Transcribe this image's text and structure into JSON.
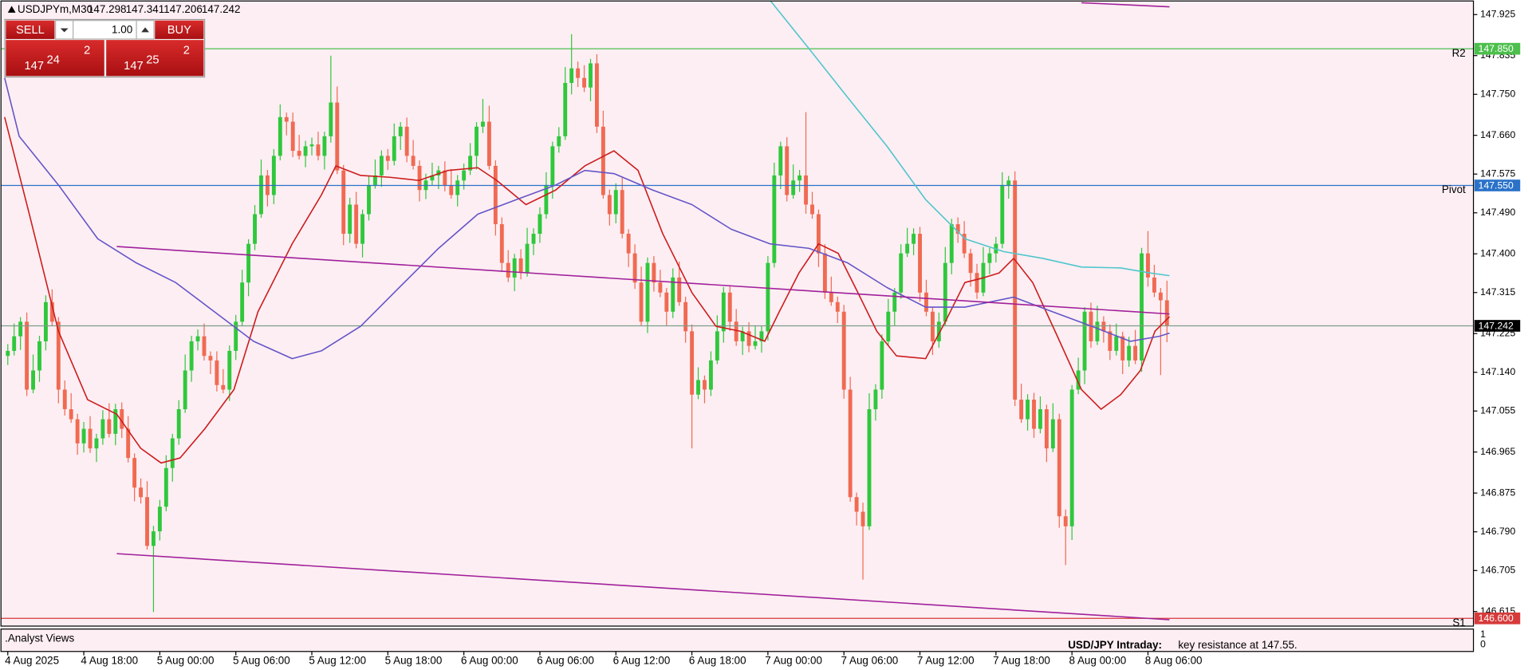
{
  "header": {
    "symbol": "USDJPYm,M30",
    "ohlc": [
      147.298,
      147.341,
      147.206,
      147.242
    ]
  },
  "trade_panel": {
    "sell": "SELL",
    "buy": "BUY",
    "lot": "1.00",
    "sell_price": {
      "big_figure": "147",
      "pips": "24",
      "fraction": "2"
    },
    "buy_price": {
      "big_figure": "147",
      "pips": "25",
      "fraction": "2"
    }
  },
  "indicator_window": {
    "title": ".Analyst Views",
    "ticks": [
      "1",
      "0"
    ],
    "annotation": {
      "title": "USD/JPY Intraday:",
      "text": "key resistance at 147.55."
    }
  },
  "chart_data": {
    "type": "candlestick",
    "up_color": "#2fc83c",
    "down_color": "#f06a52",
    "open": [
      147.176,
      147.187,
      147.219,
      147.251,
      147.102,
      147.144,
      147.208,
      147.294,
      147.251,
      147.102,
      147.059,
      147.037,
      146.984,
      147.016,
      146.973,
      146.995,
      147.037,
      147.005,
      147.059,
      147.016,
      146.952,
      146.887,
      146.866,
      146.759,
      146.791,
      146.845,
      146.93,
      146.995,
      147.059,
      147.144,
      147.208,
      147.219,
      147.176,
      147.166,
      147.112,
      147.102,
      147.187,
      147.251,
      147.337,
      147.422,
      147.487,
      147.572,
      147.529,
      147.615,
      147.7,
      147.69,
      147.626,
      147.615,
      147.636,
      147.64,
      147.615,
      147.658,
      147.732,
      147.583,
      147.444,
      147.508,
      147.422,
      147.487,
      147.551,
      147.572,
      147.615,
      147.604,
      147.658,
      147.679,
      147.615,
      147.593,
      147.54,
      147.561,
      147.572,
      147.583,
      147.551,
      147.529,
      147.561,
      147.583,
      147.615,
      147.679,
      147.69,
      147.593,
      147.465,
      147.38,
      147.348,
      147.39,
      147.358,
      147.422,
      147.444,
      147.487,
      147.551,
      147.636,
      147.658,
      147.775,
      147.807,
      147.786,
      147.765,
      147.818,
      147.679,
      147.529,
      147.487,
      147.54,
      147.444,
      147.401,
      147.337,
      147.251,
      147.38,
      147.337,
      147.315,
      147.273,
      147.348,
      147.294,
      147.23,
      147.091,
      147.123,
      147.102,
      147.166,
      147.23,
      147.315,
      147.251,
      147.208,
      147.23,
      147.198,
      147.208,
      147.23,
      147.38,
      147.572,
      147.636,
      147.529,
      147.561,
      147.572,
      147.508,
      147.487,
      147.401,
      147.315,
      147.294,
      147.273,
      147.102,
      146.866,
      146.834,
      146.802,
      147.059,
      147.102,
      147.208,
      147.273,
      147.315,
      147.401,
      147.422,
      147.444,
      147.315,
      147.273,
      147.208,
      147.251,
      147.38,
      147.465,
      147.444,
      147.401,
      147.358,
      147.315,
      147.38,
      147.401,
      147.422,
      147.551,
      147.561,
      147.08,
      147.037,
      147.08,
      147.016,
      147.059,
      146.973,
      147.037,
      146.824,
      146.802,
      147.102,
      147.144,
      147.273,
      147.208,
      147.251,
      147.23,
      147.187,
      147.219,
      147.166,
      147.198,
      147.166,
      147.401,
      147.348,
      147.315,
      147.298
    ],
    "high": [
      147.202,
      147.247,
      147.261,
      147.271,
      147.179,
      147.22,
      147.309,
      147.322,
      147.261,
      147.122,
      147.094,
      147.049,
      147.031,
      147.044,
      147.005,
      147.057,
      147.072,
      147.071,
      147.074,
      147.044,
      146.962,
      146.907,
      146.901,
      146.803,
      146.86,
      146.958,
      147.005,
      147.079,
      147.179,
      147.22,
      147.234,
      147.247,
      147.186,
      147.186,
      147.147,
      147.199,
      147.266,
      147.365,
      147.432,
      147.507,
      147.607,
      147.584,
      147.63,
      147.728,
      147.71,
      147.71,
      147.661,
      147.648,
      147.655,
      147.668,
      147.668,
      147.835,
      147.767,
      147.595,
      147.523,
      147.536,
      147.497,
      147.571,
      147.607,
      147.627,
      147.63,
      147.686,
      147.689,
      147.699,
      147.65,
      147.605,
      147.576,
      147.6,
      147.593,
      147.603,
      147.586,
      147.573,
      147.598,
      147.643,
      147.689,
      147.74,
      147.725,
      147.605,
      147.48,
      147.408,
      147.4,
      147.41,
      147.457,
      147.456,
      147.502,
      147.579,
      147.646,
      147.678,
      147.81,
      147.882,
      147.822,
      147.814,
      147.828,
      147.838,
      147.714,
      147.541,
      147.555,
      147.568,
      147.454,
      147.421,
      147.372,
      147.392,
      147.395,
      147.365,
      147.325,
      147.368,
      147.383,
      147.306,
      147.245,
      147.151,
      147.133,
      147.186,
      147.265,
      147.327,
      147.33,
      147.279,
      147.24,
      147.25,
      147.243,
      147.242,
      147.395,
      147.6,
      147.646,
      147.656,
      147.596,
      147.584,
      147.711,
      147.536,
      147.497,
      147.421,
      147.35,
      147.306,
      147.288,
      147.13,
      146.876,
      146.854,
      147.094,
      147.114,
      147.223,
      147.301,
      147.325,
      147.421,
      147.457,
      147.456,
      147.459,
      147.343,
      147.283,
      147.271,
      147.415,
      147.477,
      147.48,
      147.472,
      147.411,
      147.378,
      147.415,
      147.413,
      147.437,
      147.579,
      147.571,
      147.581,
      147.115,
      147.092,
      147.095,
      147.087,
      147.069,
      147.072,
      147.049,
      146.839,
      147.112,
      147.172,
      147.283,
      147.293,
      147.286,
      147.263,
      147.245,
      147.247,
      147.229,
      147.218,
      147.233,
      147.413,
      147.45,
      147.376,
      147.325,
      147.341
    ],
    "low": [
      147.156,
      147.177,
      147.189,
      147.088,
      147.094,
      147.119,
      147.188,
      147.241,
      147.072,
      147.045,
      147.029,
      146.959,
      146.964,
      146.963,
      146.943,
      146.981,
      146.997,
      146.98,
      146.996,
      146.942,
      146.857,
      146.852,
      146.751,
      146.614,
      146.771,
      146.835,
      146.9,
      146.981,
      147.051,
      147.119,
      147.188,
      147.166,
      147.136,
      147.098,
      147.094,
      147.077,
      147.167,
      147.241,
      147.307,
      147.408,
      147.479,
      147.504,
      147.509,
      147.605,
      147.66,
      147.612,
      147.607,
      147.59,
      147.616,
      147.605,
      147.585,
      147.644,
      147.575,
      147.419,
      147.424,
      147.412,
      147.392,
      147.473,
      147.543,
      147.547,
      147.584,
      147.594,
      147.628,
      147.601,
      147.585,
      147.515,
      147.52,
      147.551,
      147.542,
      147.537,
      147.521,
      147.504,
      147.541,
      147.573,
      147.585,
      147.665,
      147.585,
      147.44,
      147.36,
      147.338,
      147.318,
      147.344,
      147.35,
      147.397,
      147.424,
      147.477,
      147.521,
      147.622,
      147.65,
      147.75,
      147.766,
      147.755,
      147.735,
      147.665,
      147.521,
      147.462,
      147.467,
      147.434,
      147.371,
      147.323,
      147.243,
      147.226,
      147.317,
      147.305,
      147.243,
      147.259,
      147.286,
      147.205,
      146.973,
      147.081,
      147.072,
      147.088,
      147.158,
      147.205,
      147.231,
      147.198,
      147.178,
      147.184,
      147.19,
      147.183,
      147.21,
      147.37,
      147.542,
      147.515,
      147.521,
      147.536,
      147.488,
      147.477,
      147.371,
      147.301,
      147.286,
      147.248,
      147.082,
      146.856,
      146.804,
      146.685,
      146.794,
      147.034,
      147.082,
      147.198,
      147.243,
      147.301,
      147.393,
      147.397,
      147.295,
      147.263,
      147.178,
      147.194,
      147.243,
      147.355,
      147.424,
      147.391,
      147.328,
      147.301,
      147.307,
      147.355,
      147.381,
      147.412,
      147.521,
      147.066,
      147.029,
      147.012,
      146.996,
      147.006,
      146.943,
      146.965,
      146.799,
      146.717,
      146.772,
      147.092,
      147.114,
      147.194,
      147.2,
      147.205,
      147.167,
      147.177,
      147.136,
      147.152,
      147.158,
      147.141,
      147.328,
      147.305,
      147.134,
      147.206
    ],
    "close": [
      147.187,
      147.219,
      147.251,
      147.102,
      147.144,
      147.208,
      147.294,
      147.251,
      147.102,
      147.059,
      147.037,
      146.984,
      147.016,
      146.973,
      146.995,
      147.037,
      147.005,
      147.059,
      147.016,
      146.952,
      146.887,
      146.866,
      146.759,
      146.791,
      146.845,
      146.93,
      146.995,
      147.059,
      147.144,
      147.208,
      147.219,
      147.176,
      147.166,
      147.112,
      147.102,
      147.187,
      147.251,
      147.337,
      147.422,
      147.487,
      147.572,
      147.529,
      147.615,
      147.7,
      147.69,
      147.626,
      147.615,
      147.636,
      147.64,
      147.615,
      147.658,
      147.732,
      147.583,
      147.444,
      147.508,
      147.422,
      147.487,
      147.551,
      147.572,
      147.615,
      147.604,
      147.658,
      147.679,
      147.615,
      147.593,
      147.54,
      147.561,
      147.572,
      147.583,
      147.551,
      147.529,
      147.561,
      147.583,
      147.615,
      147.679,
      147.69,
      147.593,
      147.465,
      147.38,
      147.348,
      147.39,
      147.358,
      147.422,
      147.444,
      147.487,
      147.551,
      147.636,
      147.658,
      147.775,
      147.807,
      147.786,
      147.765,
      147.818,
      147.679,
      147.529,
      147.487,
      147.54,
      147.444,
      147.401,
      147.337,
      147.251,
      147.38,
      147.337,
      147.315,
      147.273,
      147.348,
      147.294,
      147.23,
      147.091,
      147.123,
      147.102,
      147.166,
      147.23,
      147.315,
      147.251,
      147.208,
      147.23,
      147.198,
      147.208,
      147.23,
      147.38,
      147.572,
      147.636,
      147.529,
      147.561,
      147.572,
      147.508,
      147.487,
      147.401,
      147.315,
      147.294,
      147.273,
      147.102,
      146.866,
      146.834,
      146.802,
      147.059,
      147.102,
      147.208,
      147.273,
      147.315,
      147.401,
      147.422,
      147.444,
      147.315,
      147.273,
      147.208,
      147.251,
      147.38,
      147.465,
      147.444,
      147.401,
      147.358,
      147.315,
      147.38,
      147.401,
      147.422,
      147.551,
      147.561,
      147.08,
      147.037,
      147.08,
      147.016,
      147.059,
      146.973,
      147.037,
      146.824,
      146.802,
      147.102,
      147.144,
      147.273,
      147.208,
      147.251,
      147.23,
      147.187,
      147.219,
      147.166,
      147.198,
      147.166,
      147.401,
      147.348,
      147.315,
      147.298,
      147.242
    ],
    "xlim": [
      -1.23,
      231.38
    ],
    "ylim": [
      146.583,
      147.957
    ],
    "xticks": [
      {
        "value": 0,
        "label": "4 Aug 2025"
      },
      {
        "value": 12,
        "label": "4 Aug 18:00"
      },
      {
        "value": 24,
        "label": "5 Aug 00:00"
      },
      {
        "value": 36,
        "label": "5 Aug 06:00"
      },
      {
        "value": 48,
        "label": "5 Aug 12:00"
      },
      {
        "value": 60,
        "label": "5 Aug 18:00"
      },
      {
        "value": 72,
        "label": "6 Aug 00:00"
      },
      {
        "value": 84,
        "label": "6 Aug 06:00"
      },
      {
        "value": 96,
        "label": "6 Aug 12:00"
      },
      {
        "value": 108,
        "label": "6 Aug 18:00"
      },
      {
        "value": 120,
        "label": "7 Aug 00:00"
      },
      {
        "value": 132,
        "label": "7 Aug 06:00"
      },
      {
        "value": 144,
        "label": "7 Aug 12:00"
      },
      {
        "value": 156,
        "label": "7 Aug 18:00"
      },
      {
        "value": 168,
        "label": "8 Aug 00:00"
      },
      {
        "value": 180,
        "label": "8 Aug 06:00"
      }
    ],
    "yticks": [
      147.925,
      147.835,
      {
        "value": 147.75,
        "label": "147.750"
      },
      {
        "value": 147.66,
        "label": "147.660"
      },
      147.575,
      {
        "value": 147.49,
        "label": "147.490"
      },
      {
        "value": 147.4,
        "label": "147.400"
      },
      147.315,
      147.225,
      {
        "value": 147.14,
        "label": "147.140"
      },
      147.055,
      146.965,
      146.875,
      {
        "value": 146.79,
        "label": "146.790"
      },
      146.705,
      146.615
    ],
    "lines": [
      {
        "color": "#cc1c1c",
        "x": [
          -0.5,
          3.4,
          8,
          12.6,
          17.2,
          21,
          24.2,
          27.2,
          31.1,
          35.7,
          39.5,
          44.9,
          49.5,
          51.8,
          55.7,
          60.3,
          64.9,
          69.5,
          74.2,
          77.2,
          81.8,
          86.5,
          91.1,
          95.7,
          99.5,
          103.4,
          108,
          111.8,
          115.7,
          119.5,
          121.8,
          124.9,
          128,
          131.1,
          134.2,
          137.2,
          140.3,
          144.9,
          148,
          151.1,
          154.2,
          156.5,
          158.8,
          161.8,
          165.7,
          169.5,
          172.6,
          175.7,
          178.8,
          181.1,
          183.4
        ],
        "values": [
          147.7,
          147.487,
          147.23,
          147.08,
          147.048,
          146.973,
          146.941,
          146.952,
          147.016,
          147.102,
          147.273,
          147.422,
          147.529,
          147.593,
          147.572,
          147.568,
          147.561,
          147.583,
          147.589,
          147.561,
          147.508,
          147.54,
          147.593,
          147.626,
          147.583,
          147.444,
          147.315,
          147.241,
          147.23,
          147.208,
          147.273,
          147.358,
          147.422,
          147.401,
          147.315,
          147.23,
          147.176,
          147.17,
          147.251,
          147.337,
          147.348,
          147.358,
          147.39,
          147.337,
          147.219,
          147.102,
          147.059,
          147.091,
          147.144,
          147.23,
          147.262
        ]
      },
      {
        "color": "#6455c8",
        "x": [
          -0.5,
          1.8,
          8,
          14.2,
          20.3,
          26.5,
          32.6,
          38.8,
          44.9,
          49.5,
          55.7,
          61.8,
          68,
          74.2,
          80.3,
          86.5,
          91.1,
          95.7,
          101.8,
          108,
          114.2,
          120.3,
          126.5,
          132.6,
          138.8,
          144.9,
          151.1,
          158.8,
          164.9,
          171.1,
          177.2,
          181.8,
          183.4
        ],
        "values": [
          147.786,
          147.658,
          147.551,
          147.433,
          147.38,
          147.337,
          147.273,
          147.208,
          147.17,
          147.187,
          147.241,
          147.326,
          147.412,
          147.487,
          147.519,
          147.551,
          147.583,
          147.576,
          147.54,
          147.508,
          147.454,
          147.422,
          147.412,
          147.38,
          147.326,
          147.283,
          147.283,
          147.305,
          147.273,
          147.241,
          147.208,
          147.219,
          147.226
        ]
      },
      {
        "color": "#4fc6cc",
        "x": [
          120.3,
          126.5,
          132.6,
          138.8,
          144.9,
          151.1,
          157.2,
          163.4,
          169.5,
          175.7,
          180.3,
          183.4
        ],
        "values": [
          147.957,
          147.85,
          147.743,
          147.636,
          147.519,
          147.433,
          147.405,
          147.39,
          147.371,
          147.369,
          147.358,
          147.352
        ]
      },
      {
        "color": "#a0209a",
        "x": [
          17.2,
          183.4
        ],
        "values": [
          147.416,
          147.268
        ]
      },
      {
        "color": "#a0209a",
        "x": [
          17.2,
          183.4
        ],
        "values": [
          146.742,
          146.597
        ]
      },
      {
        "color": "#a0209a",
        "x": [
          169.5,
          183.4
        ],
        "values": [
          147.951,
          147.942
        ]
      }
    ],
    "levels": [
      {
        "name": "R2",
        "value": 147.85,
        "value_label": "147.850",
        "color": "#4cbf4c"
      },
      {
        "name": "Pivot",
        "value": 147.55,
        "value_label": "147.550",
        "color": "#2a72c8"
      },
      {
        "name": "S1",
        "value": 146.6,
        "value_label": "146.600",
        "color": "#d63a3a"
      },
      {
        "value": 147.242,
        "color": "#7c9c88",
        "tag_color": "#000000"
      }
    ]
  }
}
